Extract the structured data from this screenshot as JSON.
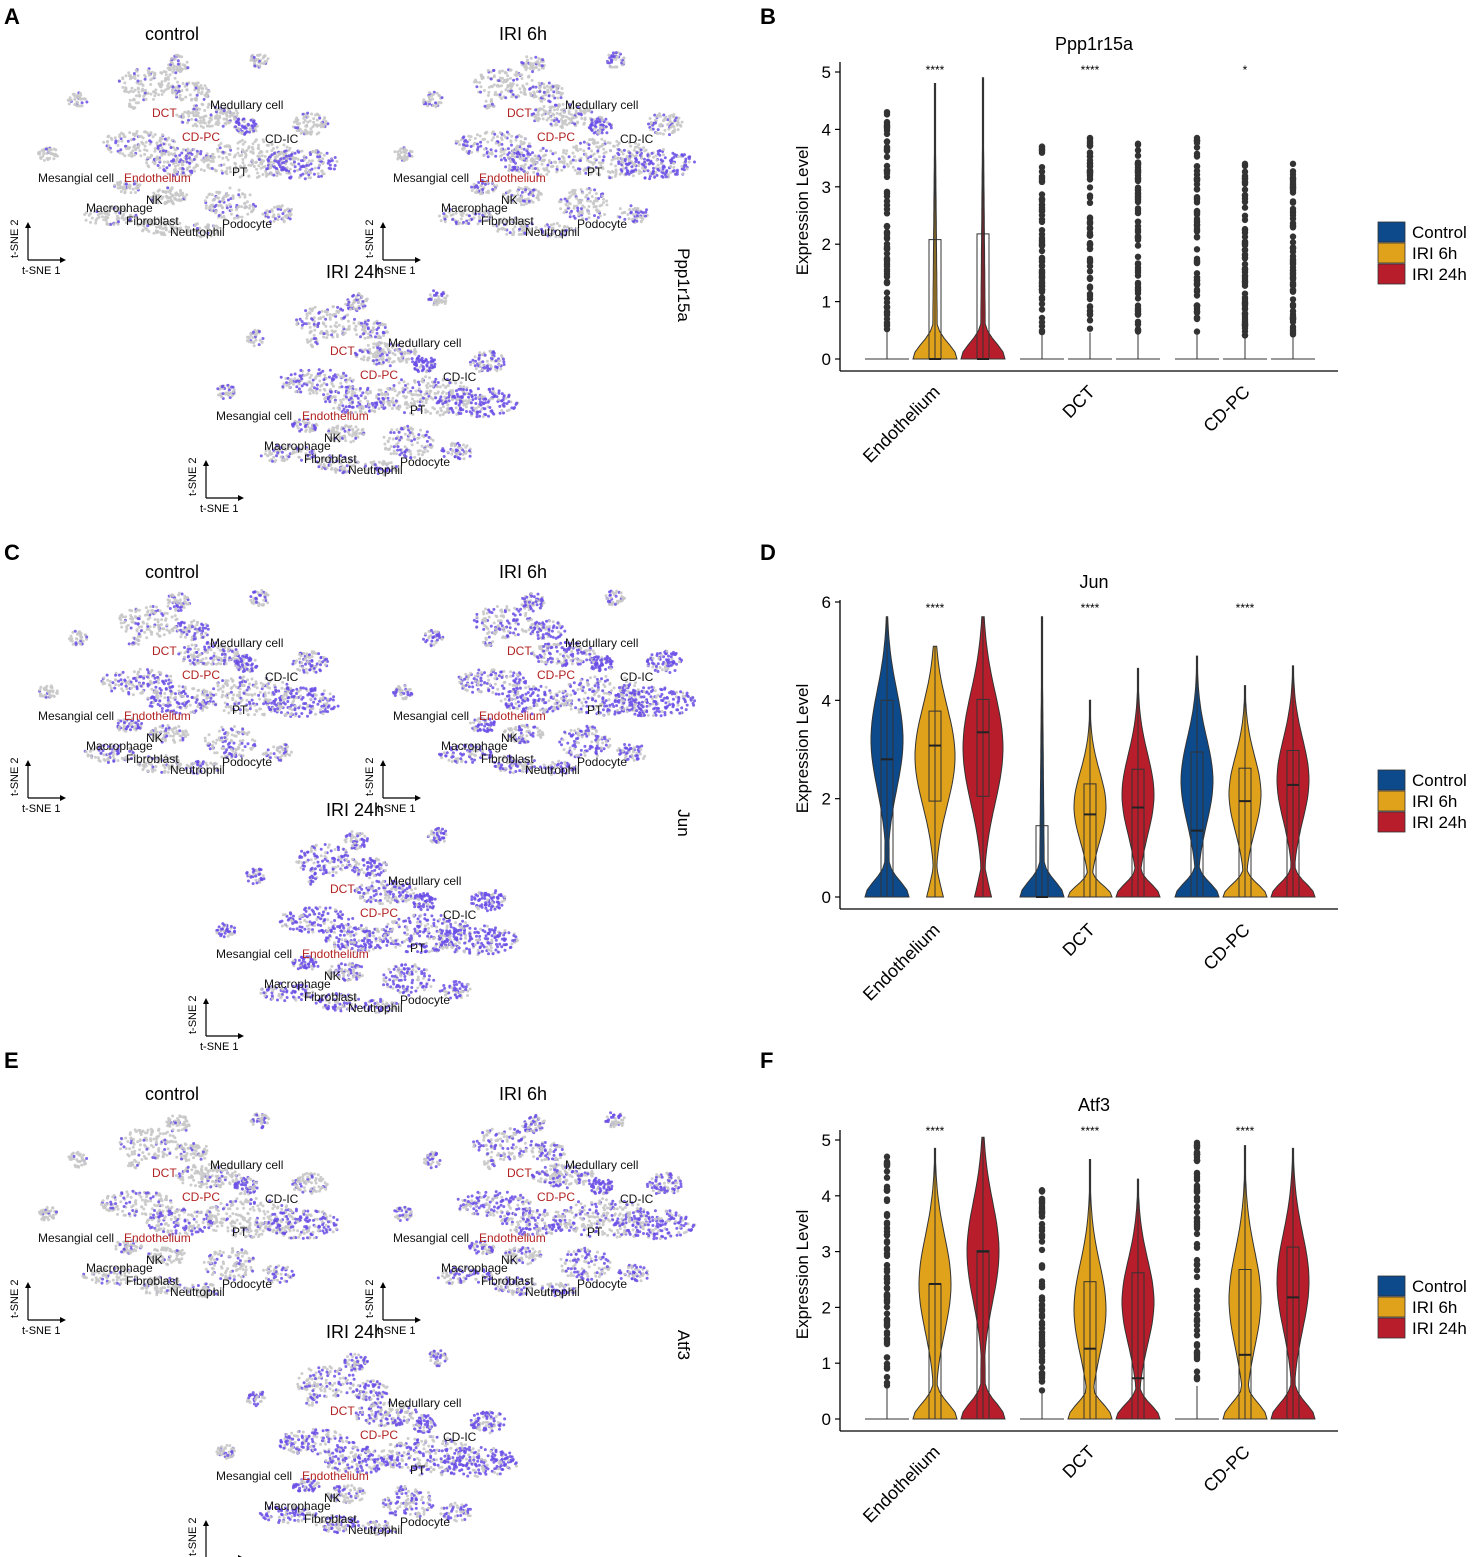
{
  "figure": {
    "panels": [
      {
        "id": "A",
        "letter": "A",
        "kind": "tsne",
        "gene": "Ppp1r15a",
        "titles": [
          "control",
          "IRI 6h",
          "IRI 24h"
        ]
      },
      {
        "id": "B",
        "letter": "B",
        "kind": "violin",
        "gene": "Ppp1r15a"
      },
      {
        "id": "C",
        "letter": "C",
        "kind": "tsne",
        "gene": "Jun",
        "titles": [
          "control",
          "IRI 6h",
          "IRI 24h"
        ]
      },
      {
        "id": "D",
        "letter": "D",
        "kind": "violin",
        "gene": "Jun"
      },
      {
        "id": "E",
        "letter": "E",
        "kind": "tsne",
        "gene": "Atf3",
        "titles": [
          "control",
          "IRI 6h",
          "IRI 24h"
        ]
      },
      {
        "id": "F",
        "letter": "F",
        "kind": "violin",
        "gene": "Atf3"
      }
    ],
    "tsne_axes": {
      "x_label": "t-SNE 1",
      "y_label": "t-SNE 2"
    },
    "cluster_labels": [
      {
        "name": "DCT",
        "highlight": true
      },
      {
        "name": "Medullary cell",
        "highlight": false
      },
      {
        "name": "CD-PC",
        "highlight": true
      },
      {
        "name": "CD-IC",
        "highlight": false
      },
      {
        "name": "PT",
        "highlight": false
      },
      {
        "name": "Mesangial cell",
        "highlight": false
      },
      {
        "name": "Endothelium",
        "highlight": true
      },
      {
        "name": "NK",
        "highlight": false
      },
      {
        "name": "Macrophage",
        "highlight": false
      },
      {
        "name": "Fibroblast",
        "highlight": false
      },
      {
        "name": "Neutrophil",
        "highlight": false
      },
      {
        "name": "Podocyte",
        "highlight": false
      }
    ],
    "colors": {
      "control": "#0c4a8c",
      "iri6h": "#e0a11b",
      "iri24h": "#b81d2b",
      "highlight_label": "#b22222",
      "expr_dot": "#6b4ee6",
      "bg_dot": "#c8c8c8"
    }
  },
  "chart_data": [
    {
      "type": "violin",
      "panel": "B",
      "title": "Ppp1r15a",
      "ylabel": "Expression Level",
      "categories": [
        "Endothelium",
        "DCT",
        "CD-PC"
      ],
      "ylim": [
        0,
        5
      ],
      "yticks": [
        0,
        1,
        2,
        3,
        4,
        5
      ],
      "significance": [
        "****",
        "****",
        "*"
      ],
      "legend": [
        "Control",
        "IRI 6h",
        "IRI 24h"
      ],
      "series": [
        {
          "name": "Control",
          "max": [
            4.3,
            3.7,
            3.85
          ],
          "q1": [
            0,
            0,
            0
          ],
          "median": [
            0,
            0,
            0
          ],
          "q3": [
            0,
            0,
            0
          ]
        },
        {
          "name": "IRI 6h",
          "max": [
            4.8,
            3.85,
            3.4
          ],
          "q1": [
            0,
            0,
            0
          ],
          "median": [
            0,
            0,
            0
          ],
          "q3": [
            2.08,
            0,
            0
          ]
        },
        {
          "name": "IRI 24h",
          "max": [
            4.9,
            3.75,
            3.4
          ],
          "q1": [
            0,
            0,
            0
          ],
          "median": [
            0,
            0,
            0
          ],
          "q3": [
            2.18,
            0,
            0
          ]
        }
      ]
    },
    {
      "type": "violin",
      "panel": "D",
      "title": "Jun",
      "ylabel": "Expression Level",
      "categories": [
        "Endothelium",
        "DCT",
        "CD-PC"
      ],
      "ylim": [
        0,
        6
      ],
      "yticks": [
        0,
        2,
        4,
        6
      ],
      "significance": [
        "****",
        "****",
        "****"
      ],
      "legend": [
        "Control",
        "IRI 6h",
        "IRI 24h"
      ],
      "series": [
        {
          "name": "Control",
          "max": [
            5.7,
            5.7,
            4.9
          ],
          "q1": [
            0,
            0,
            0
          ],
          "median": [
            2.8,
            0,
            1.35
          ],
          "q3": [
            4.0,
            1.45,
            2.95
          ]
        },
        {
          "name": "IRI 6h",
          "max": [
            5.1,
            4.0,
            4.3
          ],
          "q1": [
            1.95,
            0,
            0
          ],
          "median": [
            3.08,
            1.68,
            1.95
          ],
          "q3": [
            3.78,
            2.3,
            2.62
          ]
        },
        {
          "name": "IRI 24h",
          "max": [
            5.7,
            4.65,
            4.7
          ],
          "q1": [
            2.05,
            0,
            0
          ],
          "median": [
            3.35,
            1.82,
            2.28
          ],
          "q3": [
            4.02,
            2.6,
            2.98
          ]
        }
      ]
    },
    {
      "type": "violin",
      "panel": "F",
      "title": "Atf3",
      "ylabel": "Expression Level",
      "categories": [
        "Endothelium",
        "DCT",
        "CD-PC"
      ],
      "ylim": [
        0,
        5
      ],
      "yticks": [
        0,
        1,
        2,
        3,
        4,
        5
      ],
      "significance": [
        "****",
        "****",
        "****"
      ],
      "legend": [
        "Control",
        "IRI 6h",
        "IRI 24h"
      ],
      "series": [
        {
          "name": "Control",
          "max": [
            4.7,
            4.1,
            4.95
          ],
          "q1": [
            0,
            0,
            0
          ],
          "median": [
            0,
            0,
            0
          ],
          "q3": [
            0,
            0,
            0
          ]
        },
        {
          "name": "IRI 6h",
          "max": [
            4.85,
            4.65,
            4.9
          ],
          "q1": [
            0,
            0,
            0
          ],
          "median": [
            2.42,
            1.26,
            1.15
          ],
          "q3": [
            2.42,
            2.46,
            2.68
          ]
        },
        {
          "name": "IRI 24h",
          "max": [
            5.05,
            4.3,
            4.85
          ],
          "q1": [
            0,
            0,
            0
          ],
          "median": [
            3.0,
            0.73,
            2.18
          ],
          "q3": [
            3.02,
            2.62,
            3.08
          ]
        }
      ]
    }
  ]
}
